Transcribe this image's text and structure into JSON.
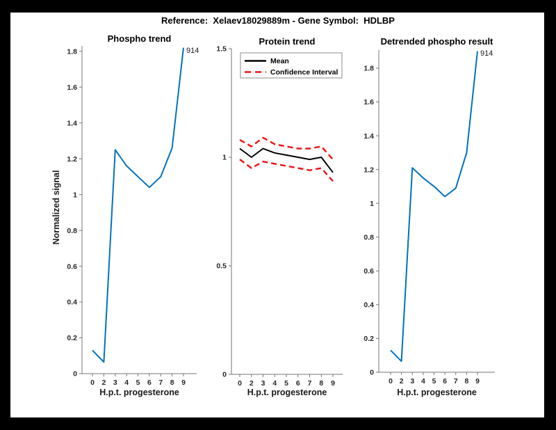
{
  "figure": {
    "suptitle": "Reference:  Xelaev18029889m - Gene Symbol:  HDLBP",
    "background_color": "#000000",
    "panel_color": "#ffffff"
  },
  "colors": {
    "blue_line": "#0072BD",
    "red_dashed": "#ee1111",
    "black_line": "#000000",
    "spine": "#767676",
    "tick_label": "#262626"
  },
  "chart_data": [
    {
      "id": "phospho-trend",
      "type": "line",
      "title": "Phospho trend",
      "xlabel": "H.p.t. progesterone",
      "ylabel": "Normalized signal",
      "x_tick_labels": [
        "0",
        "2",
        "3",
        "4",
        "5",
        "6",
        "7",
        "8",
        "9"
      ],
      "yticks": [
        0,
        0.2,
        0.4,
        0.6,
        0.8,
        1,
        1.2,
        1.4,
        1.6,
        1.8
      ],
      "ylim": [
        0,
        1.83
      ],
      "grid": false,
      "series": [
        {
          "name": "Phospho signal",
          "color": "#0072BD",
          "style": "solid",
          "values": [
            0.13,
            0.065,
            1.25,
            1.16,
            1.1,
            1.04,
            1.1,
            1.26,
            1.82
          ]
        }
      ],
      "annotation": {
        "text": "914",
        "point_index": 8,
        "value": 1.82
      }
    },
    {
      "id": "protein-trend",
      "type": "line",
      "title": "Protein trend",
      "xlabel": "H.p.t. progesterone",
      "ylabel": "",
      "x_tick_labels": [
        "0",
        "2",
        "3",
        "4",
        "5",
        "6",
        "7",
        "8",
        "9"
      ],
      "yticks": [
        0,
        0.5,
        1,
        1.5
      ],
      "ylim": [
        0,
        1.5
      ],
      "grid": false,
      "legend": {
        "position": "northwest",
        "entries": [
          {
            "label": "Mean",
            "color": "#000000",
            "style": "solid"
          },
          {
            "label": "Confidence Interval",
            "color": "#ee1111",
            "style": "dashed"
          }
        ]
      },
      "series": [
        {
          "name": "Mean",
          "color": "#000000",
          "style": "solid",
          "values": [
            1.04,
            1.0,
            1.04,
            1.02,
            1.01,
            1.0,
            0.99,
            1.0,
            0.93
          ]
        },
        {
          "name": "Confidence Interval upper",
          "color": "#ee1111",
          "style": "dashed",
          "values": [
            1.08,
            1.05,
            1.09,
            1.06,
            1.05,
            1.04,
            1.04,
            1.05,
            0.99
          ]
        },
        {
          "name": "Confidence Interval lower",
          "color": "#ee1111",
          "style": "dashed",
          "values": [
            0.99,
            0.95,
            0.98,
            0.97,
            0.96,
            0.95,
            0.94,
            0.95,
            0.89
          ]
        }
      ]
    },
    {
      "id": "detrended-phospho",
      "type": "line",
      "title": "Detrended phospho result",
      "xlabel": "H.p.t. progesterone",
      "ylabel": "",
      "x_tick_labels": [
        "0",
        "2",
        "3",
        "4",
        "5",
        "6",
        "7",
        "8",
        "9"
      ],
      "yticks": [
        0,
        0.2,
        0.4,
        0.6,
        0.8,
        1,
        1.2,
        1.4,
        1.6,
        1.8
      ],
      "ylim": [
        0,
        1.907
      ],
      "grid": false,
      "series": [
        {
          "name": "Detrended phospho signal",
          "color": "#0072BD",
          "style": "solid",
          "values": [
            0.13,
            0.065,
            1.21,
            1.15,
            1.1,
            1.04,
            1.09,
            1.3,
            1.9
          ]
        }
      ],
      "annotation": {
        "text": "914",
        "point_index": 8,
        "value": 1.9
      }
    }
  ]
}
